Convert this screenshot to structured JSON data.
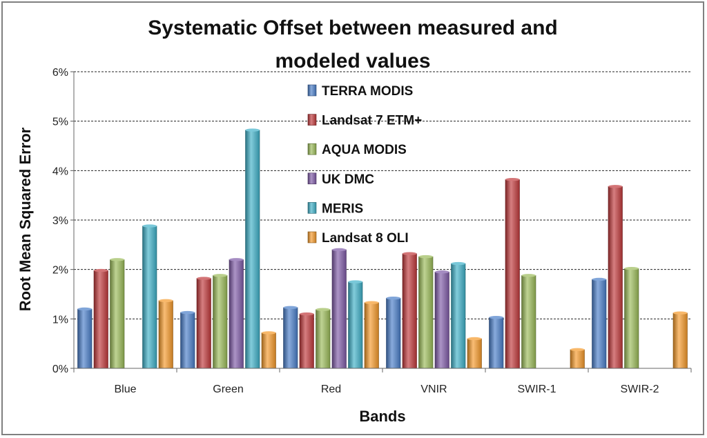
{
  "chart_data": {
    "type": "bar",
    "title_line1": "Systematic Offset between measured and",
    "title_line2": "modeled values",
    "xlabel": "Bands",
    "ylabel": "Root Mean Squared Error",
    "ylim": [
      0,
      6
    ],
    "y_ticks": [
      "0%",
      "1%",
      "2%",
      "3%",
      "4%",
      "5%",
      "6%"
    ],
    "grid": true,
    "legend_position": "upper-center",
    "categories": [
      "Blue",
      "Green",
      "Red",
      "VNIR",
      "SWIR-1",
      "SWIR-2"
    ],
    "series": [
      {
        "name": "TERRA MODIS",
        "color": "#4a7ec9",
        "values": [
          1.2,
          1.13,
          1.23,
          1.42,
          1.03,
          1.8
        ]
      },
      {
        "name": "Landsat 7 ETM+",
        "color": "#c0393b",
        "values": [
          1.98,
          1.82,
          1.1,
          2.32,
          3.82,
          3.68
        ]
      },
      {
        "name": "AQUA MODIS",
        "color": "#9bbb59",
        "values": [
          2.2,
          1.88,
          1.19,
          2.26,
          1.88,
          2.02
        ]
      },
      {
        "name": "UK DMC",
        "color": "#7f5ba8",
        "values": [
          null,
          2.2,
          2.4,
          1.95,
          null,
          null
        ]
      },
      {
        "name": "MERIS",
        "color": "#3fb0c8",
        "values": [
          2.88,
          4.82,
          1.75,
          2.12,
          null,
          null
        ]
      },
      {
        "name": "Landsat 8 OLI",
        "color": "#f59a2a",
        "values": [
          1.37,
          0.72,
          1.33,
          0.6,
          0.38,
          1.12
        ]
      }
    ]
  }
}
